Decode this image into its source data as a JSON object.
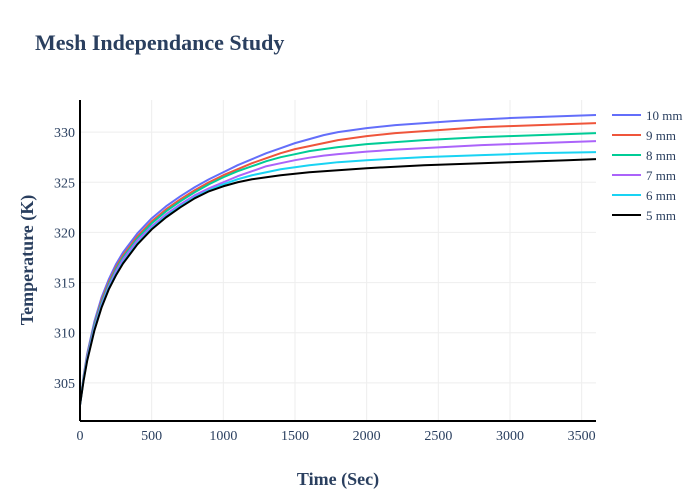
{
  "chart_data": {
    "type": "line",
    "title": "Mesh Independance Study",
    "xlabel": "Time (Sec)",
    "ylabel": "Temperature (K)",
    "xlim": [
      0,
      3600
    ],
    "ylim": [
      301.2,
      333.2
    ],
    "x_ticks": [
      0,
      500,
      1000,
      1500,
      2000,
      2500,
      3000,
      3500
    ],
    "y_ticks": [
      305,
      310,
      315,
      320,
      325,
      330
    ],
    "grid": true,
    "legend_position": "top-right",
    "x": [
      0,
      25,
      50,
      100,
      150,
      200,
      250,
      300,
      400,
      500,
      600,
      700,
      800,
      900,
      1000,
      1100,
      1200,
      1300,
      1400,
      1500,
      1600,
      1700,
      1800,
      2000,
      2200,
      2400,
      2600,
      2800,
      3000,
      3200,
      3400,
      3600
    ],
    "series": [
      {
        "name": "10 mm",
        "color": "#636efa",
        "values": [
          302.8,
          305.7,
          307.9,
          311.1,
          313.5,
          315.3,
          316.8,
          318.0,
          319.9,
          321.4,
          322.6,
          323.6,
          324.5,
          325.3,
          326.0,
          326.7,
          327.3,
          327.9,
          328.4,
          328.9,
          329.3,
          329.7,
          330.0,
          330.4,
          330.7,
          330.9,
          331.1,
          331.25,
          331.4,
          331.5,
          331.6,
          331.7
        ]
      },
      {
        "name": "9 mm",
        "color": "#ef553b",
        "values": [
          302.8,
          305.6,
          307.7,
          310.8,
          313.2,
          315.0,
          316.5,
          317.7,
          319.6,
          321.1,
          322.3,
          323.3,
          324.2,
          325.0,
          325.7,
          326.3,
          326.9,
          327.4,
          327.9,
          328.3,
          328.6,
          328.9,
          329.2,
          329.6,
          329.9,
          330.1,
          330.3,
          330.5,
          330.6,
          330.7,
          330.8,
          330.9
        ]
      },
      {
        "name": "8 mm",
        "color": "#00cc96",
        "values": [
          302.8,
          305.5,
          307.6,
          310.7,
          313.0,
          314.8,
          316.3,
          317.5,
          319.4,
          320.9,
          322.1,
          323.1,
          324.0,
          324.8,
          325.5,
          326.1,
          326.6,
          327.1,
          327.5,
          327.8,
          328.1,
          328.3,
          328.5,
          328.8,
          329.0,
          329.2,
          329.35,
          329.5,
          329.6,
          329.7,
          329.8,
          329.9
        ]
      },
      {
        "name": "7 mm",
        "color": "#ab63fa",
        "values": [
          302.8,
          305.4,
          307.5,
          310.5,
          312.8,
          314.6,
          316.1,
          317.3,
          319.2,
          320.6,
          321.8,
          322.8,
          323.7,
          324.4,
          325.0,
          325.6,
          326.1,
          326.6,
          326.9,
          327.2,
          327.45,
          327.65,
          327.8,
          328.05,
          328.25,
          328.4,
          328.55,
          328.7,
          328.8,
          328.9,
          329.0,
          329.1
        ]
      },
      {
        "name": "6 mm",
        "color": "#19d3f3",
        "values": [
          302.8,
          305.3,
          307.3,
          310.3,
          312.6,
          314.4,
          315.8,
          317.0,
          318.9,
          320.4,
          321.6,
          322.6,
          323.5,
          324.2,
          324.8,
          325.3,
          325.7,
          326.0,
          326.3,
          326.5,
          326.7,
          326.85,
          327.0,
          327.2,
          327.35,
          327.5,
          327.6,
          327.7,
          327.8,
          327.9,
          327.95,
          328.0
        ]
      },
      {
        "name": "5 mm",
        "color": "#000000",
        "values": [
          302.8,
          305.2,
          307.2,
          310.2,
          312.5,
          314.3,
          315.7,
          316.9,
          318.8,
          320.3,
          321.5,
          322.5,
          323.4,
          324.1,
          324.6,
          325.0,
          325.3,
          325.5,
          325.7,
          325.85,
          326.0,
          326.1,
          326.2,
          326.4,
          326.55,
          326.7,
          326.8,
          326.9,
          327.0,
          327.1,
          327.2,
          327.3
        ]
      }
    ]
  }
}
